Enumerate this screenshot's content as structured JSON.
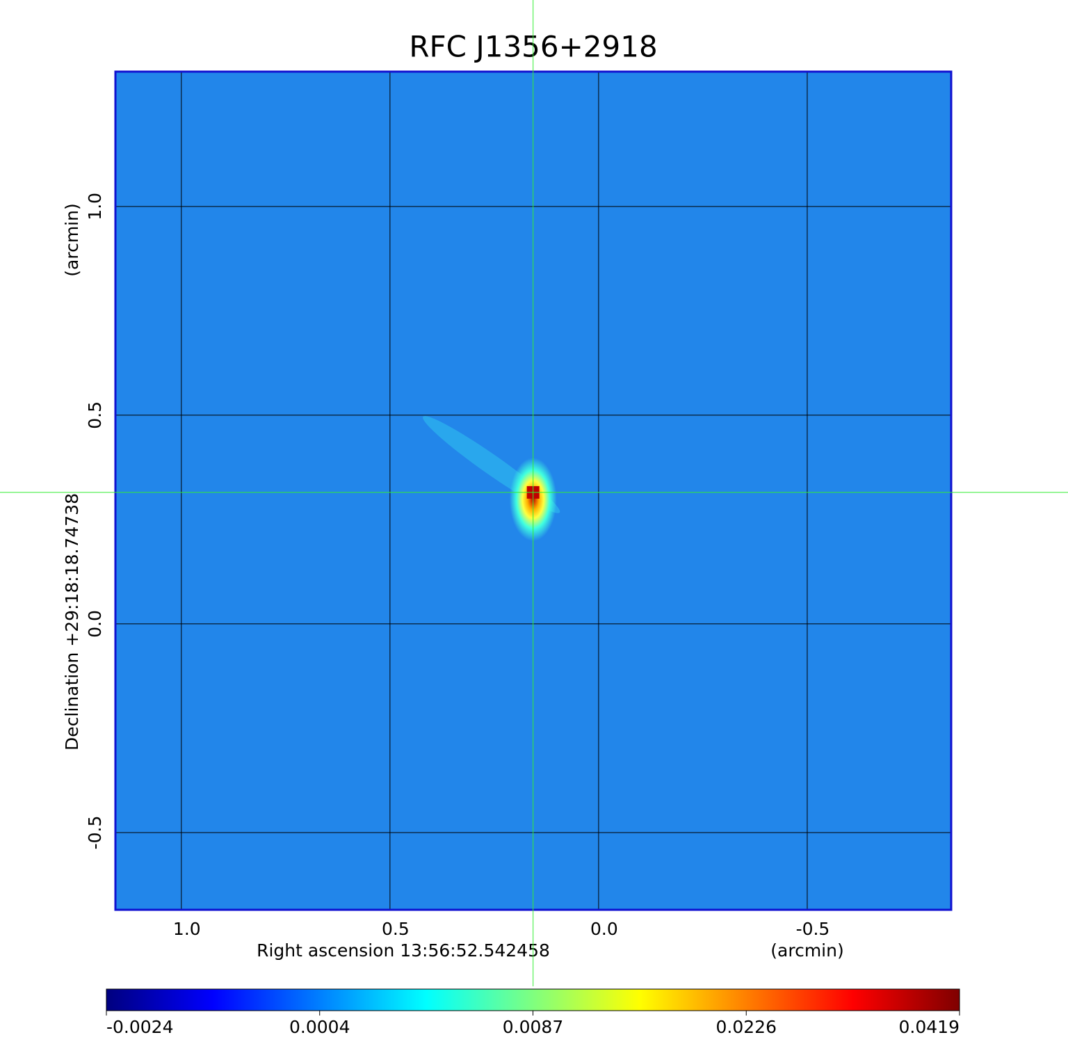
{
  "chart_data": {
    "type": "image",
    "title": "RFC J1356+2918",
    "x_label": "Right ascension  13:56:52.542458",
    "x_unit": "(arcmin)",
    "y_label": "Declination  +29:18:18.74738",
    "y_unit": "(arcmin)",
    "xlim": [
      1.158,
      -0.845
    ],
    "ylim": [
      -0.685,
      1.323
    ],
    "xticks": [
      {
        "value": 1,
        "label": "1.0"
      },
      0.5,
      {
        "value": 0,
        "label": "0.0"
      },
      -0.5
    ],
    "yticks": [
      {
        "value": -0.5,
        "label": "-0.5"
      },
      {
        "value": 0,
        "label": "0.0"
      },
      0.5,
      {
        "value": 1,
        "label": "1.0"
      }
    ],
    "grid": true,
    "map_color": "#2286ea",
    "frame_color": "#1010d0",
    "crosshair": {
      "x": 0.157,
      "y": 0.315,
      "color": "#33ee33"
    },
    "colorbar": {
      "ticks": [
        -0.0024,
        0.0004,
        0.0087,
        0.0226,
        0.0419
      ],
      "colors": [
        "#00007f",
        "#0000ff",
        "#007fff",
        "#00ffff",
        "#7fff7f",
        "#ffff00",
        "#ff7f00",
        "#ff0000",
        "#7f0000"
      ]
    }
  }
}
